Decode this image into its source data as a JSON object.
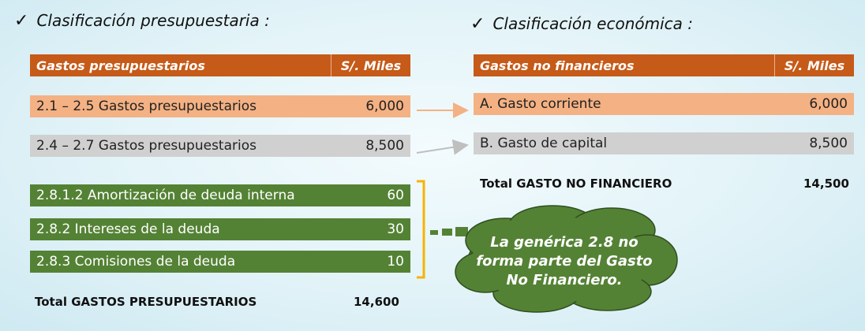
{
  "left": {
    "heading": "Clasificación presupuestaria :",
    "header": {
      "label": "Gastos presupuestarios",
      "unit": "S/. Miles"
    },
    "rows": [
      {
        "label": "2.1 – 2.5 Gastos presupuestarios",
        "value": "6,000",
        "color": "#f4b183"
      },
      {
        "label": "2.4 – 2.7 Gastos presupuestarios",
        "value": "8,500",
        "color": "#d0d0d0"
      }
    ],
    "green_rows": [
      {
        "label": "2.8.1.2 Amortización de deuda interna",
        "value": "60"
      },
      {
        "label": "2.8.2 Intereses de la deuda",
        "value": "30"
      },
      {
        "label": "2.8.3 Comisiones de la deuda",
        "value": "10"
      }
    ],
    "total": {
      "label": "Total GASTOS PRESUPUESTARIOS",
      "value": "14,600"
    }
  },
  "right": {
    "heading": "Clasificación económica :",
    "header": {
      "label": "Gastos no financieros",
      "unit": "S/. Miles"
    },
    "rows": [
      {
        "label": "A. Gasto corriente",
        "value": "6,000",
        "color": "#f4b183"
      },
      {
        "label": "B. Gasto de capital",
        "value": "8,500",
        "color": "#d0d0d0"
      }
    ],
    "total": {
      "label": "Total GASTO NO FINANCIERO",
      "value": "14,500"
    }
  },
  "cloud": {
    "line1": "La genérica 2.8 no",
    "line2": "forma parte del Gasto",
    "line3": "No Financiero.",
    "color": "#548235"
  },
  "colors": {
    "header": "#c65a18",
    "bracket": "#f5b400",
    "arrow_orange": "#f4b183",
    "arrow_gray": "#bfbfbf"
  }
}
